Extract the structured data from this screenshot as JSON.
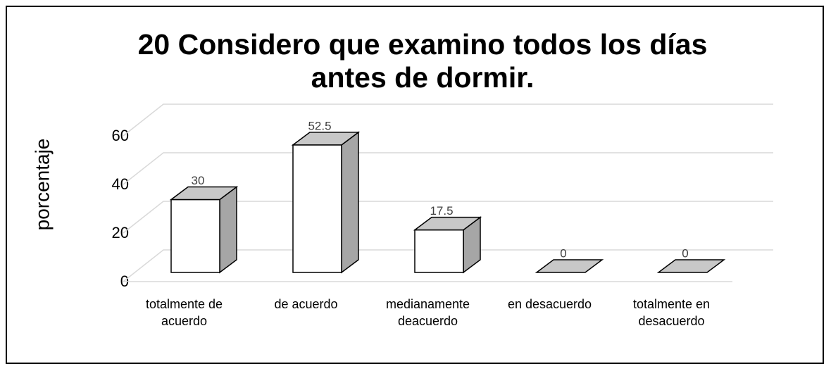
{
  "chart_data": {
    "type": "bar3d",
    "title": "20 Considero que examino todos los días antes de dormir.",
    "ylabel": "porcentaje",
    "categories": [
      "totalmente de acuerdo",
      "de acuerdo",
      "medianamente deacuerdo",
      "en desacuerdo",
      "totalmente en desacuerdo"
    ],
    "values": [
      30,
      52.5,
      17.5,
      0,
      0
    ],
    "ylim": [
      0,
      60
    ],
    "yticks": [
      0,
      20,
      40,
      60
    ],
    "grid": true,
    "color": "#ffffff",
    "side_color": "#a6a6a6",
    "top_color": "#c8c8c8"
  }
}
